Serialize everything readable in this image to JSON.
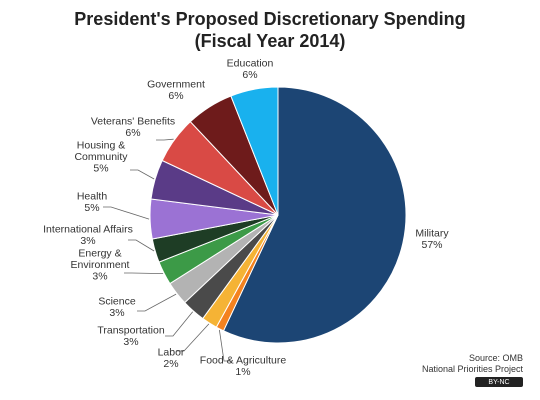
{
  "chart_data": {
    "type": "pie",
    "title": "President's Proposed Discretionary  Spending",
    "subtitle": "(Fiscal Year 2014)",
    "slices": [
      {
        "name": "Military",
        "value": 57,
        "label": "57%",
        "color": "#1c4574"
      },
      {
        "name": "Food & Agriculture",
        "value": 1,
        "label": "1%",
        "color": "#f4821f"
      },
      {
        "name": "Labor",
        "value": 2,
        "label": "2%",
        "color": "#f5b335"
      },
      {
        "name": "Transportation",
        "value": 3,
        "label": "3%",
        "color": "#4a4a4a"
      },
      {
        "name": "Science",
        "value": 3,
        "label": "3%",
        "color": "#b3b3b3"
      },
      {
        "name": "Energy & Environment",
        "value": 3,
        "label": "3%",
        "color": "#3c9a47"
      },
      {
        "name": "International  Affairs",
        "value": 3,
        "label": "3%",
        "color": "#1e3d25"
      },
      {
        "name": "Health",
        "value": 5,
        "label": "5%",
        "color": "#9b72d4"
      },
      {
        "name": "Housing & Community",
        "value": 5,
        "label": "5%",
        "color": "#5a3b87"
      },
      {
        "name": "Veterans' Benefits",
        "value": 6,
        "label": "6%",
        "color": "#d94a45"
      },
      {
        "name": "Government",
        "value": 6,
        "label": "6%",
        "color": "#6e1b1b"
      },
      {
        "name": "Education",
        "value": 6,
        "label": "6%",
        "color": "#19b1ee"
      }
    ],
    "label_lines": {
      "Military": [
        "Military",
        "57%"
      ],
      "Food & Agriculture": [
        "Food & Agriculture",
        "1%"
      ],
      "Labor": [
        "Labor",
        "2%"
      ],
      "Transportation": [
        "Transportation",
        "3%"
      ],
      "Science": [
        "Science",
        "3%"
      ],
      "Energy & Environment": [
        "Energy &",
        "Environment",
        "3%"
      ],
      "International  Affairs": [
        "International  Affairs",
        "3%"
      ],
      "Health": [
        "Health",
        "5%"
      ],
      "Housing & Community": [
        "Housing &",
        "Community",
        "5%"
      ],
      "Veterans' Benefits": [
        "Veterans'  Benefits",
        "6%"
      ],
      "Government": [
        "Government",
        "6%"
      ],
      "Education": [
        "Education",
        "6%"
      ]
    },
    "source_lines": [
      "Source: OMB",
      "National Priorities Project"
    ],
    "license": "BY-NC"
  }
}
